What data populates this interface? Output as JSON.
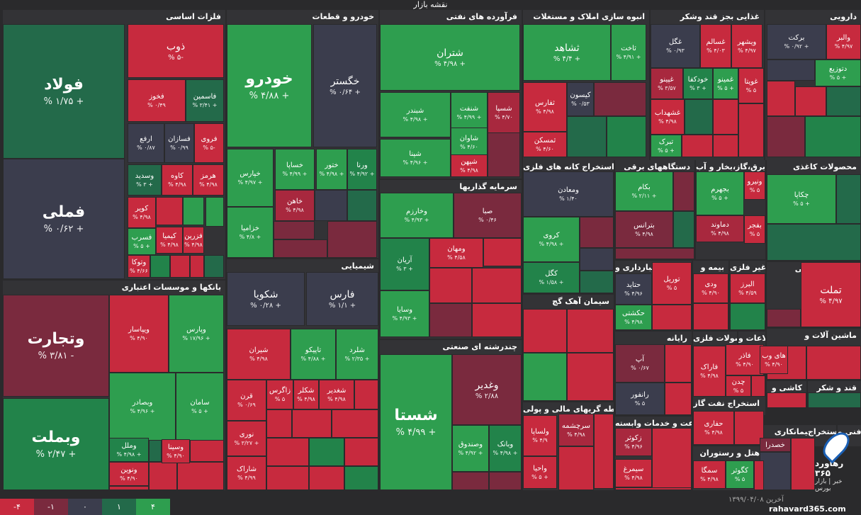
{
  "title": "نقشه بازار",
  "colors": {
    "pos4": "#2e9e4f",
    "pos2": "#22834a",
    "pos1": "#236a4a",
    "neutral": "#3b3d4d",
    "neg1": "#7a2a3e",
    "neg2": "#a8283e",
    "neg4": "#c72a3e"
  },
  "sections": [
    {
      "label": "فلزات اساسی"
    },
    {
      "label": "خودرو و قطعات"
    },
    {
      "label": "فرآورده های نفتی"
    },
    {
      "label": "انبوه سازی املاک و مستغلات"
    },
    {
      "label": "غذایی بجز قند وشکر"
    },
    {
      "label": "دارویی"
    },
    {
      "label": "بانکها و موسسات اعتباری"
    },
    {
      "label": "شیمیایی"
    },
    {
      "label": "سرمایه گذاریها"
    },
    {
      "label": "چندرشته ای صنعتی"
    },
    {
      "label": "استخراج کانه های فلزی"
    },
    {
      "label": "دستگاههای برقی"
    },
    {
      "label": "عرضه برق،گاز،بخار و آب"
    },
    {
      "label": "محصولات کاغذی"
    },
    {
      "label": "حمل و نقل انبارداری و"
    },
    {
      "label": "بیمه و"
    },
    {
      "label": "کانی غیر فلزی"
    },
    {
      "label": "فعالیتهای کمکی"
    },
    {
      "label": "سیمان آهک گچ"
    },
    {
      "label": "رایانه"
    },
    {
      "label": "محصولات فلزی"
    },
    {
      "label": "اطلاعات و"
    },
    {
      "label": "ماشین آلات و"
    },
    {
      "label": "لاستیک و"
    },
    {
      "label": "کاشی و"
    },
    {
      "label": "قند و شکر"
    },
    {
      "label": "استخراج نفت گاز"
    },
    {
      "label": "واسطه گریهای مالی و پولی"
    },
    {
      "label": "زراعت و خدمات وابسته"
    },
    {
      "label": "بیمانکاری"
    },
    {
      "label": "استخراج"
    },
    {
      "label": "فنی و"
    },
    {
      "label": "هتل و رستوران"
    }
  ],
  "tiles": [
    {
      "name": "فولاد",
      "value": "% ۱/۷۵ +"
    },
    {
      "name": "فملی",
      "value": "% ۰/۶۲ +"
    },
    {
      "name": "ذوب",
      "value": "% ۵-"
    },
    {
      "name": "فخوز",
      "value": "% ۰/۴۹"
    },
    {
      "name": "فاسمین",
      "value": "% ۳/۴۱ +"
    },
    {
      "name": "ارفع",
      "value": "% ۰/۸۷"
    },
    {
      "name": "فسازان",
      "value": "% ۰/۹۹"
    },
    {
      "name": "فروی",
      "value": "% ۵-"
    },
    {
      "name": "وسدید",
      "value": "% ۳ +"
    },
    {
      "name": "کاوه",
      "value": "% ۴/۹۸"
    },
    {
      "name": "هرمز",
      "value": "% ۴/۹۸"
    },
    {
      "name": "کویر",
      "value": "% ۴/۹۸"
    },
    {
      "name": "کیمیا",
      "value": "% ۴/۹۸"
    },
    {
      "name": "فزرین",
      "value": "% ۴/۹۸"
    },
    {
      "name": "فسرب",
      "value": "% ۵ +"
    },
    {
      "name": "وتوکا",
      "value": "% ۴/۶۶"
    },
    {
      "name": "خودرو",
      "value": "% ۴/۸۸ +"
    },
    {
      "name": "خگستر",
      "value": "% ۰/۶۴ +"
    },
    {
      "name": "خپارس",
      "value": "% ۴/۹۷ +"
    },
    {
      "name": "خساپا",
      "value": "% ۴/۹۹ +"
    },
    {
      "name": "ختور",
      "value": "% ۴/۹۸ +"
    },
    {
      "name": "ورنا",
      "value": "% ۴/۹۲ +"
    },
    {
      "name": "خاهن",
      "value": "% ۴/۹۸"
    },
    {
      "name": "خزامیا",
      "value": "% ۴/۸ +"
    },
    {
      "name": "شتران",
      "value": "% ۴/۹۸ +"
    },
    {
      "name": "شبندر",
      "value": "% ۴/۹۸ +"
    },
    {
      "name": "شنفت",
      "value": "% ۴/۹۹ +"
    },
    {
      "name": "شسپا",
      "value": "% ۴/۷۰"
    },
    {
      "name": "شاوان",
      "value": "% ۴/۶۰"
    },
    {
      "name": "شپنا",
      "value": "% ۴/۹۶ +"
    },
    {
      "name": "شپهن",
      "value": "% ۴/۹۸"
    },
    {
      "name": "ثشاهد",
      "value": "% ۴/۴ +"
    },
    {
      "name": "ثاخت",
      "value": "% ۴/۹۱ +"
    },
    {
      "name": "ثفارس",
      "value": "% ۴/۹۸"
    },
    {
      "name": "کیسون",
      "value": "% ۰/۵۳"
    },
    {
      "name": "ثمسکن",
      "value": "% ۴/۶۰"
    },
    {
      "name": "غگل",
      "value": "% ۰/۹۳"
    },
    {
      "name": "غسالم",
      "value": "% ۴/۰۳"
    },
    {
      "name": "ویشهر",
      "value": "% ۴/۹۷"
    },
    {
      "name": "غپینو",
      "value": "% ۳/۵۷"
    },
    {
      "name": "خودکفا",
      "value": "% ۳ +"
    },
    {
      "name": "غمینو",
      "value": "% ۵ +"
    },
    {
      "name": "غویتا",
      "value": "% ۵"
    },
    {
      "name": "غشهداب",
      "value": "% ۴/۹۸"
    },
    {
      "name": "تبرک",
      "value": "% ۵ +"
    },
    {
      "name": "برکت",
      "value": "% ۰/۹۲ +"
    },
    {
      "name": "والبر",
      "value": "% ۴/۹۷"
    },
    {
      "name": "دتوزیع",
      "value": "% ۵ +"
    },
    {
      "name": "وتجارت",
      "value": "% ۳/۸۱ -"
    },
    {
      "name": "ویپاسار",
      "value": "% ۴/۹۰"
    },
    {
      "name": "وپارس",
      "value": "% ۱۷/۹۶ +"
    },
    {
      "name": "وبصادر",
      "value": "% ۴/۹۶ +"
    },
    {
      "name": "سامان",
      "value": "% ۵ +"
    },
    {
      "name": "وبملت",
      "value": "% ۲/۴۷ +"
    },
    {
      "name": "وملل",
      "value": "% ۴/۹۸ +"
    },
    {
      "name": "وسینا",
      "value": "% ۴/۹۰"
    },
    {
      "name": "ونوین",
      "value": "% ۴/۹۰"
    },
    {
      "name": "شکویا",
      "value": "% ۰/۲۸ +"
    },
    {
      "name": "فارس",
      "value": "% ۱/۱ +"
    },
    {
      "name": "شیران",
      "value": "% ۴/۹۸"
    },
    {
      "name": "تاپیکو",
      "value": "% ۴/۸۸ +"
    },
    {
      "name": "شلرد",
      "value": "% ۲/۳۵ +"
    },
    {
      "name": "قرن",
      "value": "% ۰/۶۹"
    },
    {
      "name": "زاگرس",
      "value": "% ۵"
    },
    {
      "name": "شکلر",
      "value": "% ۴/۹۸"
    },
    {
      "name": "شغدیر",
      "value": "% ۴/۹۸"
    },
    {
      "name": "نوری",
      "value": "% ۳/۲۷ +"
    },
    {
      "name": "شاراک",
      "value": "% ۴/۹۹"
    },
    {
      "name": "وخارزم",
      "value": "% ۴/۹۳ +"
    },
    {
      "name": "صبا",
      "value": "% ۰/۴۶"
    },
    {
      "name": "آریان",
      "value": "% ۳ +"
    },
    {
      "name": "ومهان",
      "value": "% ۴/۵۸"
    },
    {
      "name": "وسایا",
      "value": "% ۴/۹۳ +"
    },
    {
      "name": "شستا",
      "value": "% ۴/۹۹ +"
    },
    {
      "name": "وغدیر",
      "value": "% ۲/۸۸"
    },
    {
      "name": "وصندوق",
      "value": "% ۴/۹۲ +"
    },
    {
      "name": "وبانک",
      "value": "% ۴/۹۸ +"
    },
    {
      "name": "ومعادن",
      "value": "% ۱/۴۰"
    },
    {
      "name": "کروی",
      "value": "% ۴/۹۸ +"
    },
    {
      "name": "کگل",
      "value": "% ۱/۵۸ +"
    },
    {
      "name": "بکام",
      "value": "% ۲/۱۱ +"
    },
    {
      "name": "بترانس",
      "value": "% ۴/۹۸"
    },
    {
      "name": "بجهرم",
      "value": "% ۵ +"
    },
    {
      "name": "ونیرو",
      "value": "% ۵"
    },
    {
      "name": "دماوند",
      "value": "% ۴/۹۸"
    },
    {
      "name": "بفجر",
      "value": "% ۵"
    },
    {
      "name": "چکاپا",
      "value": "% ۵ +"
    },
    {
      "name": "حتاید",
      "value": "% ۴/۹۶"
    },
    {
      "name": "توریل",
      "value": "% ۵"
    },
    {
      "name": "حکشتی",
      "value": "% ۴/۹۸"
    },
    {
      "name": "ودی",
      "value": "% ۴/۹۰"
    },
    {
      "name": "البرز",
      "value": "% ۴/۵۹"
    },
    {
      "name": "تملت",
      "value": "% ۴/۹۷"
    },
    {
      "name": "آپ",
      "value": "% ۰/۶۷"
    },
    {
      "name": "رانفور",
      "value": "% ۵"
    },
    {
      "name": "فاذر",
      "value": "% ۴/۹۰"
    },
    {
      "name": "فاراک",
      "value": "% ۴/۹۸"
    },
    {
      "name": "چدن",
      "value": "% ۵"
    },
    {
      "name": "های وب",
      "value": "% ۴/۹۰"
    },
    {
      "name": "حفاری",
      "value": "% ۴/۹۸"
    },
    {
      "name": "سرچشمه",
      "value": "% ۴/۹۸"
    },
    {
      "name": "ولساپا",
      "value": "% ۴/۹"
    },
    {
      "name": "واحیا",
      "value": "% ۵ +"
    },
    {
      "name": "زکوثر",
      "value": "% ۴/۹۶"
    },
    {
      "name": "سیمرغ",
      "value": "% ۴/۹۸"
    },
    {
      "name": "خصدرا",
      "value": ""
    },
    {
      "name": "سمگا",
      "value": "% ۴/۹۸"
    },
    {
      "name": "کگوثر",
      "value": "% ۵"
    }
  ],
  "legend": [
    "-۴",
    "-۱",
    "۰",
    "۱",
    "۴"
  ],
  "footer": {
    "date": "آخرین ۱۳۹۹/۰۴/۰۸",
    "site": "rahavard365.com"
  },
  "logo": {
    "brand": "رهآورد ۳۶۵",
    "sub": "خبر | بازار بورس"
  }
}
